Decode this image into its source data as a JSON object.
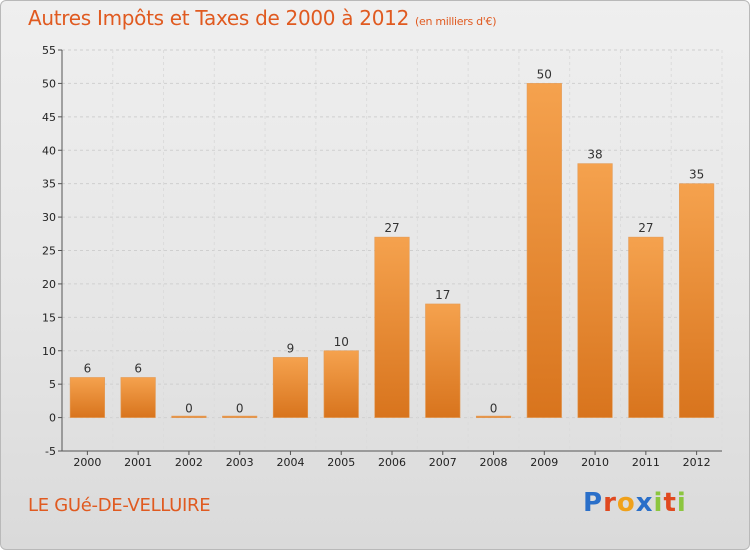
{
  "title": "Autres Impôts et Taxes de 2000 à 2012",
  "title_unit": "(en milliers d'€)",
  "place": "LE GUé-DE-VELLUIRE",
  "logo": {
    "letters": [
      "P",
      "r",
      "o",
      "x",
      "i",
      "t",
      "i"
    ],
    "colors": [
      "#2a6fc9",
      "#e0491f",
      "#f0a11a",
      "#2a6fc9",
      "#8cc63f",
      "#e0491f",
      "#8cc63f"
    ]
  },
  "colors": {
    "title": "#e05a20",
    "bar_light": "#f5a24e",
    "bar_dark": "#d8741d",
    "grid": "#d0d0d0"
  },
  "chart_data": {
    "type": "bar",
    "categories": [
      "2000",
      "2001",
      "2002",
      "2003",
      "2004",
      "2005",
      "2006",
      "2007",
      "2008",
      "2009",
      "2010",
      "2011",
      "2012"
    ],
    "values": [
      6,
      6,
      0,
      0,
      9,
      10,
      27,
      17,
      0,
      50,
      38,
      27,
      35
    ],
    "ylim": [
      -5,
      55
    ],
    "yticks": [
      -5,
      0,
      5,
      10,
      15,
      20,
      25,
      30,
      35,
      40,
      45,
      50,
      55
    ],
    "grid": "horizontal dashed",
    "xlabel": "",
    "ylabel": ""
  }
}
